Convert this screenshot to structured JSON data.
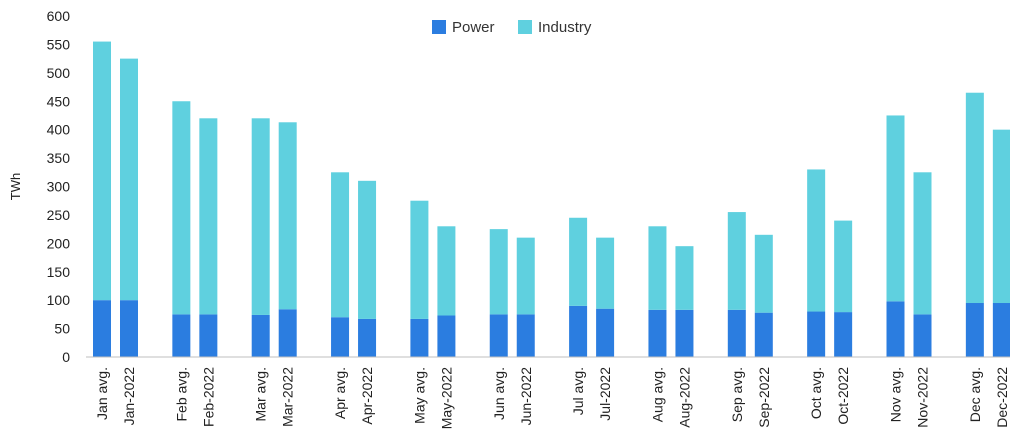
{
  "chart_data": {
    "type": "bar",
    "stacked": true,
    "title": "",
    "xlabel": "",
    "ylabel": "TWh",
    "ylim": [
      0,
      600
    ],
    "yticks": [
      0,
      50,
      100,
      150,
      200,
      250,
      300,
      350,
      400,
      450,
      500,
      550,
      600
    ],
    "legend_position": "top-center",
    "grid": false,
    "categories": [
      "Jan avg.",
      "Jan-2022",
      "Feb avg.",
      "Feb-2022",
      "Mar avg.",
      "Mar-2022",
      "Apr avg.",
      "Apr-2022",
      "May avg.",
      "May-2022",
      "Jun avg.",
      "Jun-2022",
      "Jul avg.",
      "Jul-2022",
      "Aug avg.",
      "Aug-2022",
      "Sep avg.",
      "Sep-2022",
      "Oct avg.",
      "Oct-2022",
      "Nov avg.",
      "Nov-2022",
      "Dec avg.",
      "Dec-2022"
    ],
    "series": [
      {
        "name": "Power",
        "color": "#2b7de0",
        "values": [
          100,
          100,
          75,
          75,
          74,
          84,
          70,
          67,
          67,
          73,
          75,
          75,
          90,
          85,
          83,
          83,
          83,
          78,
          80,
          79,
          98,
          75,
          95,
          95
        ]
      },
      {
        "name": "Industry",
        "color": "#5fd0df",
        "values": [
          455,
          425,
          375,
          345,
          346,
          329,
          255,
          243,
          208,
          157,
          150,
          135,
          155,
          125,
          147,
          112,
          172,
          137,
          250,
          161,
          327,
          250,
          370,
          305
        ]
      }
    ]
  }
}
